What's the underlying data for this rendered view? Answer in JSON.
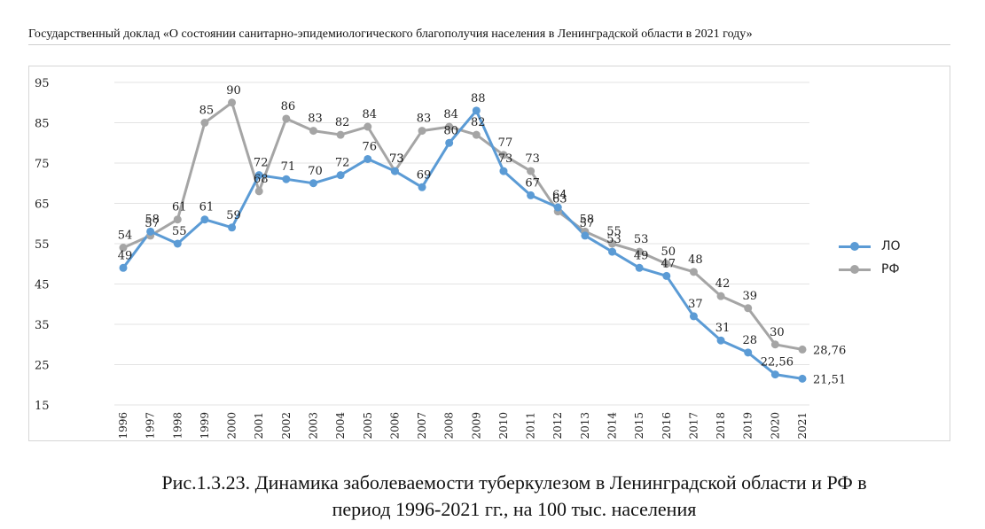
{
  "header": {
    "title": "Государственный доклад «О состоянии санитарно-эпидемиологического благополучия населения в Ленинградской области в 2021 году»"
  },
  "caption": {
    "line1": "Рис.1.3.23. Динамика заболеваемости туберкулезом в Ленинградской области и РФ в",
    "line2": "период 1996-2021 гг., на 100 тыс. населения"
  },
  "colors": {
    "lo": "#5b9bd5",
    "rf": "#a5a5a5",
    "grid": "#e3e3e3"
  },
  "chart_data": {
    "type": "line",
    "title": "",
    "xlabel": "",
    "ylabel": "",
    "categories": [
      "1996",
      "1997",
      "1998",
      "1999",
      "2000",
      "2001",
      "2002",
      "2003",
      "2004",
      "2005",
      "2006",
      "2007",
      "2008",
      "2009",
      "2010",
      "2011",
      "2012",
      "2013",
      "2014",
      "2015",
      "2016",
      "2017",
      "2018",
      "2019",
      "2020",
      "2021"
    ],
    "ylim": [
      15,
      95
    ],
    "yticks": [
      15,
      25,
      35,
      45,
      55,
      65,
      75,
      85,
      95
    ],
    "grid": true,
    "legend_position": "right",
    "series": [
      {
        "name": "ЛО",
        "color": "#5b9bd5",
        "values": [
          49,
          58,
          55,
          61,
          59,
          72,
          71,
          70,
          72,
          76,
          73,
          69,
          80,
          88,
          73,
          67,
          64,
          57,
          53,
          49,
          47,
          37,
          31,
          28,
          22.56,
          21.51
        ],
        "labels": [
          "49",
          "58",
          "55",
          "61",
          "59",
          "72",
          "71",
          "70",
          "72",
          "76",
          "73",
          "69",
          "80",
          "88",
          "73",
          "67",
          "64",
          "57",
          "53",
          "49",
          "47",
          "37",
          "31",
          "28",
          "22,56",
          "21,51"
        ]
      },
      {
        "name": "РФ",
        "color": "#a5a5a5",
        "values": [
          54,
          57,
          61,
          85,
          90,
          68,
          86,
          83,
          82,
          84,
          73,
          83,
          84,
          82,
          77,
          73,
          63,
          58,
          55,
          53,
          50,
          48,
          42,
          39,
          30,
          28.76
        ],
        "labels": [
          "54",
          "57",
          "61",
          "85",
          "90",
          "68",
          "86",
          "83",
          "82",
          "84",
          "73",
          "83",
          "84",
          "82",
          "77",
          "73",
          "63",
          "58",
          "55",
          "53",
          "50",
          "48",
          "42",
          "39",
          "30",
          "28,76"
        ]
      }
    ]
  }
}
